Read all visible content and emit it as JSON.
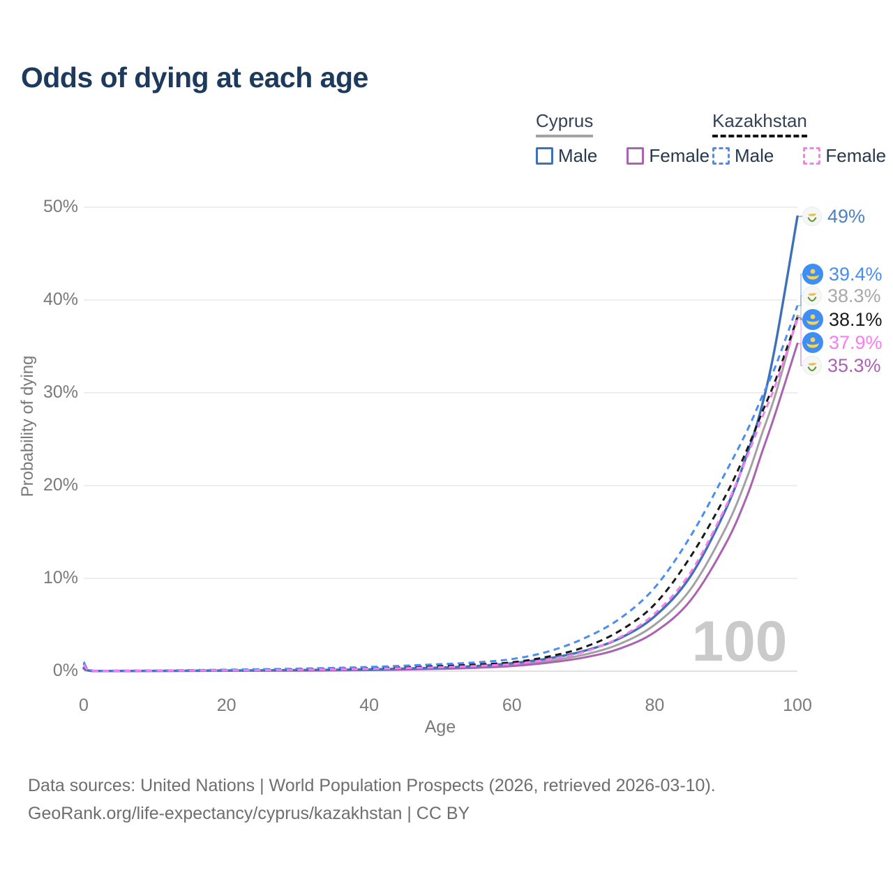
{
  "title": "Odds of dying at each age",
  "legend": {
    "groups": [
      {
        "label": "Cyprus",
        "line_style": "solid",
        "underline_color": "#a3a3a3",
        "items": [
          {
            "label": "Male",
            "color": "#3e72b8"
          },
          {
            "label": "Female",
            "color": "#aa62b2"
          }
        ]
      },
      {
        "label": "Kazakhstan",
        "line_style": "dashed",
        "underline_color": "#151515",
        "items": [
          {
            "label": "Male",
            "color": "#4a8df2"
          },
          {
            "label": "Female",
            "color": "#f97cf0"
          }
        ]
      }
    ]
  },
  "watermark": "100",
  "footer": {
    "line1": "Data sources: United Nations | World Population Prospects (2026, retrieved 2026-03-10).",
    "line2": "GeoRank.org/life-expectancy/cyprus/kazakhstan | CC BY"
  },
  "chart_data": {
    "type": "line",
    "title": "Odds of dying at each age",
    "xlabel": "Age",
    "ylabel": "Probability of dying",
    "xlim": [
      0,
      100
    ],
    "ylim": [
      0,
      50
    ],
    "grid": "horizontal",
    "legend_position": "top-right",
    "xticks": [
      0,
      20,
      40,
      60,
      80,
      100
    ],
    "yticks": [
      "0%",
      "10%",
      "20%",
      "30%",
      "40%",
      "50%"
    ],
    "x": [
      0,
      1,
      5,
      10,
      20,
      30,
      40,
      50,
      55,
      60,
      65,
      70,
      75,
      80,
      85,
      90,
      93,
      95,
      97,
      100
    ],
    "series": [
      {
        "country": "Cyprus",
        "sex": "Male",
        "style": "solid",
        "color": "#3e72b8",
        "label_color": "#4e80c4",
        "flag": "cyprus",
        "end_label": "49%",
        "values": [
          0.35,
          0.04,
          0.02,
          0.03,
          0.07,
          0.11,
          0.19,
          0.38,
          0.55,
          0.85,
          1.35,
          2.15,
          3.5,
          5.9,
          10.2,
          17.5,
          23.5,
          28.5,
          35.5,
          49.0
        ]
      },
      {
        "country": "Kazakhstan",
        "sex": "Male",
        "style": "dashed",
        "color": "#4a8df2",
        "label_color": "#4a8df2",
        "flag": "kazakhstan",
        "end_label": "39.4%",
        "values": [
          1.0,
          0.1,
          0.06,
          0.07,
          0.16,
          0.27,
          0.45,
          0.75,
          0.95,
          1.3,
          2.1,
          3.5,
          5.6,
          9.0,
          14.5,
          21.5,
          26.0,
          29.5,
          33.0,
          39.4
        ]
      },
      {
        "country": "Cyprus",
        "sex": "Both",
        "style": "solid",
        "color": "#a2a2a2",
        "label_color": "#a8a8a8",
        "flag": "cyprus",
        "end_label": "38.3%",
        "values": [
          0.3,
          0.03,
          0.015,
          0.02,
          0.05,
          0.09,
          0.15,
          0.3,
          0.44,
          0.68,
          1.1,
          1.75,
          2.9,
          5.0,
          8.8,
          15.5,
          21.0,
          25.5,
          30.0,
          38.3
        ]
      },
      {
        "country": "Kazakhstan",
        "sex": "Both",
        "style": "dashed",
        "color": "#1a1a1a",
        "label_color": "#1a1a1a",
        "flag": "kazakhstan",
        "end_label": "38.1%",
        "values": [
          0.85,
          0.08,
          0.05,
          0.06,
          0.12,
          0.2,
          0.33,
          0.55,
          0.72,
          0.95,
          1.55,
          2.55,
          4.3,
          7.2,
          12.3,
          19.0,
          24.0,
          27.8,
          31.5,
          38.1
        ]
      },
      {
        "country": "Kazakhstan",
        "sex": "Female",
        "style": "dashed",
        "color": "#f97cf0",
        "label_color": "#f97cf0",
        "flag": "kazakhstan",
        "end_label": "37.9%",
        "values": [
          0.7,
          0.07,
          0.04,
          0.05,
          0.09,
          0.14,
          0.24,
          0.42,
          0.56,
          0.76,
          1.25,
          2.05,
          3.6,
          6.2,
          10.6,
          17.8,
          23.2,
          27.2,
          31.0,
          37.9
        ]
      },
      {
        "country": "Cyprus",
        "sex": "Female",
        "style": "solid",
        "color": "#aa62b2",
        "label_color": "#aa62b2",
        "flag": "cyprus",
        "end_label": "35.3%",
        "values": [
          0.25,
          0.03,
          0.01,
          0.02,
          0.04,
          0.06,
          0.11,
          0.24,
          0.36,
          0.55,
          0.9,
          1.45,
          2.4,
          4.2,
          7.6,
          13.8,
          19.0,
          23.5,
          28.0,
          35.3
        ]
      }
    ]
  }
}
